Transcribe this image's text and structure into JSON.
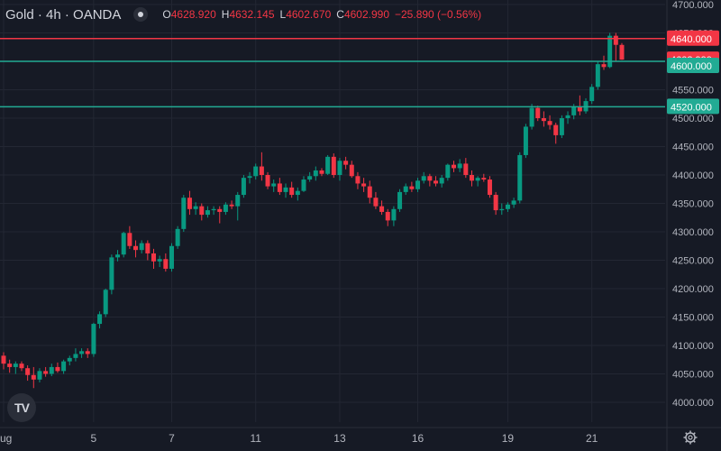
{
  "header": {
    "symbol": "Gold · 4h · OANDA",
    "ohlc": [
      {
        "k": "O",
        "v": "4628.920"
      },
      {
        "k": "H",
        "v": "4632.145"
      },
      {
        "k": "L",
        "v": "4602.670"
      },
      {
        "k": "C",
        "v": "4602.990"
      }
    ],
    "change": "−25.890 (−0.56%)"
  },
  "logo_text": "TV",
  "colors": {
    "background": "#161a25",
    "up": "#089981",
    "down": "#f23645",
    "grid": "#232733",
    "text": "#b2b5be",
    "line_red": "#f23645",
    "line_teal": "#22ab94"
  },
  "chart_data": {
    "type": "candlestick",
    "ylim": [
      3960,
      4710
    ],
    "y_ticks": [
      "4000.000",
      "4050.000",
      "4100.000",
      "4150.000",
      "4200.000",
      "4250.000",
      "4300.000",
      "4350.000",
      "4400.000",
      "4450.000",
      "4500.000",
      "4550.000",
      "4600.000",
      "4650.000",
      "4700.000"
    ],
    "x_ticks": [
      {
        "label": "ug",
        "index": 0
      },
      {
        "label": "5",
        "index": 15
      },
      {
        "label": "7",
        "index": 28
      },
      {
        "label": "11",
        "index": 42
      },
      {
        "label": "13",
        "index": 56
      },
      {
        "label": "16",
        "index": 69
      },
      {
        "label": "19",
        "index": 84
      },
      {
        "label": "21",
        "index": 98
      }
    ],
    "horizontal_lines": [
      {
        "value": 4640,
        "label": "4640.000",
        "color": "#f23645"
      },
      {
        "value": 4602.99,
        "label": "4602.990",
        "color": "#f23645"
      },
      {
        "value": 4600,
        "label": "4600.000",
        "color": "#22ab94"
      },
      {
        "value": 4520,
        "label": "4520.000",
        "color": "#22ab94"
      }
    ],
    "candles": [
      [
        4082,
        4088,
        4058,
        4068
      ],
      [
        4068,
        4075,
        4052,
        4062
      ],
      [
        4062,
        4072,
        4050,
        4068
      ],
      [
        4068,
        4072,
        4055,
        4060
      ],
      [
        4060,
        4065,
        4038,
        4048
      ],
      [
        4048,
        4062,
        4025,
        4040
      ],
      [
        4040,
        4060,
        4035,
        4055
      ],
      [
        4055,
        4062,
        4045,
        4050
      ],
      [
        4050,
        4068,
        4046,
        4062
      ],
      [
        4062,
        4070,
        4052,
        4055
      ],
      [
        4055,
        4075,
        4050,
        4072
      ],
      [
        4072,
        4082,
        4065,
        4078
      ],
      [
        4078,
        4095,
        4072,
        4085
      ],
      [
        4085,
        4095,
        4078,
        4090
      ],
      [
        4090,
        4095,
        4078,
        4085
      ],
      [
        4085,
        4140,
        4080,
        4138
      ],
      [
        4138,
        4160,
        4130,
        4155
      ],
      [
        4155,
        4200,
        4150,
        4198
      ],
      [
        4198,
        4260,
        4190,
        4255
      ],
      [
        4255,
        4268,
        4248,
        4260
      ],
      [
        4260,
        4300,
        4255,
        4298
      ],
      [
        4298,
        4310,
        4270,
        4275
      ],
      [
        4275,
        4285,
        4255,
        4268
      ],
      [
        4268,
        4285,
        4262,
        4280
      ],
      [
        4280,
        4285,
        4250,
        4262
      ],
      [
        4262,
        4270,
        4235,
        4248
      ],
      [
        4248,
        4258,
        4238,
        4252
      ],
      [
        4252,
        4262,
        4230,
        4235
      ],
      [
        4235,
        4280,
        4230,
        4275
      ],
      [
        4275,
        4310,
        4270,
        4305
      ],
      [
        4305,
        4365,
        4300,
        4360
      ],
      [
        4360,
        4372,
        4330,
        4340
      ],
      [
        4340,
        4352,
        4330,
        4345
      ],
      [
        4345,
        4350,
        4320,
        4330
      ],
      [
        4330,
        4345,
        4325,
        4338
      ],
      [
        4338,
        4345,
        4330,
        4340
      ],
      [
        4340,
        4345,
        4315,
        4335
      ],
      [
        4335,
        4352,
        4330,
        4348
      ],
      [
        4348,
        4355,
        4340,
        4345
      ],
      [
        4345,
        4370,
        4320,
        4365
      ],
      [
        4365,
        4400,
        4360,
        4395
      ],
      [
        4395,
        4405,
        4385,
        4398
      ],
      [
        4398,
        4420,
        4392,
        4415
      ],
      [
        4415,
        4440,
        4390,
        4400
      ],
      [
        4400,
        4405,
        4375,
        4380
      ],
      [
        4380,
        4392,
        4370,
        4385
      ],
      [
        4385,
        4395,
        4365,
        4370
      ],
      [
        4370,
        4385,
        4360,
        4378
      ],
      [
        4378,
        4388,
        4360,
        4365
      ],
      [
        4365,
        4378,
        4355,
        4372
      ],
      [
        4372,
        4398,
        4370,
        4392
      ],
      [
        4392,
        4405,
        4388,
        4398
      ],
      [
        4398,
        4415,
        4390,
        4408
      ],
      [
        4408,
        4412,
        4398,
        4402
      ],
      [
        4402,
        4435,
        4400,
        4432
      ],
      [
        4432,
        4438,
        4395,
        4400
      ],
      [
        4400,
        4430,
        4390,
        4425
      ],
      [
        4425,
        4432,
        4410,
        4418
      ],
      [
        4418,
        4425,
        4395,
        4398
      ],
      [
        4398,
        4405,
        4375,
        4385
      ],
      [
        4385,
        4395,
        4370,
        4380
      ],
      [
        4380,
        4390,
        4350,
        4360
      ],
      [
        4360,
        4370,
        4340,
        4345
      ],
      [
        4345,
        4355,
        4330,
        4335
      ],
      [
        4335,
        4340,
        4310,
        4320
      ],
      [
        4320,
        4345,
        4310,
        4340
      ],
      [
        4340,
        4375,
        4335,
        4370
      ],
      [
        4370,
        4385,
        4365,
        4380
      ],
      [
        4380,
        4388,
        4370,
        4375
      ],
      [
        4375,
        4395,
        4370,
        4390
      ],
      [
        4390,
        4405,
        4385,
        4398
      ],
      [
        4398,
        4402,
        4380,
        4390
      ],
      [
        4390,
        4398,
        4380,
        4385
      ],
      [
        4385,
        4400,
        4378,
        4395
      ],
      [
        4395,
        4420,
        4390,
        4418
      ],
      [
        4418,
        4425,
        4405,
        4412
      ],
      [
        4412,
        4428,
        4405,
        4420
      ],
      [
        4420,
        4430,
        4395,
        4400
      ],
      [
        4400,
        4408,
        4380,
        4390
      ],
      [
        4390,
        4398,
        4380,
        4395
      ],
      [
        4395,
        4402,
        4388,
        4392
      ],
      [
        4392,
        4398,
        4360,
        4365
      ],
      [
        4365,
        4370,
        4330,
        4338
      ],
      [
        4338,
        4350,
        4330,
        4340
      ],
      [
        4340,
        4352,
        4335,
        4348
      ],
      [
        4348,
        4360,
        4342,
        4355
      ],
      [
        4355,
        4440,
        4350,
        4435
      ],
      [
        4435,
        4490,
        4430,
        4485
      ],
      [
        4485,
        4525,
        4480,
        4518
      ],
      [
        4518,
        4522,
        4495,
        4500
      ],
      [
        4500,
        4512,
        4485,
        4495
      ],
      [
        4495,
        4505,
        4480,
        4488
      ],
      [
        4488,
        4492,
        4455,
        4470
      ],
      [
        4470,
        4505,
        4465,
        4500
      ],
      [
        4500,
        4512,
        4490,
        4505
      ],
      [
        4505,
        4525,
        4498,
        4520
      ],
      [
        4520,
        4540,
        4505,
        4512
      ],
      [
        4512,
        4535,
        4508,
        4530
      ],
      [
        4530,
        4560,
        4525,
        4555
      ],
      [
        4555,
        4600,
        4550,
        4595
      ],
      [
        4595,
        4610,
        4585,
        4590
      ],
      [
        4590,
        4650,
        4588,
        4645
      ],
      [
        4645,
        4650,
        4600,
        4629
      ],
      [
        4628.92,
        4632.145,
        4602.67,
        4602.99
      ]
    ]
  }
}
